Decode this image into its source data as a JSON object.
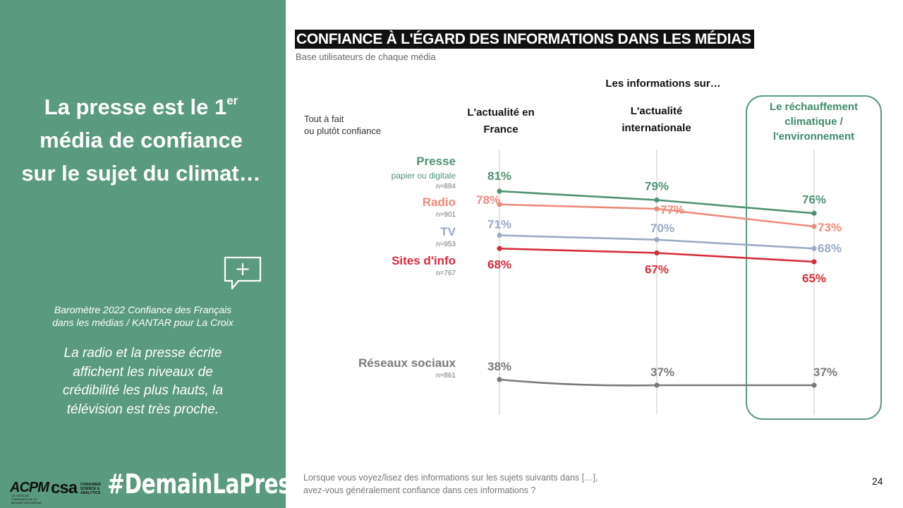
{
  "left_panel": {
    "headline_line1": "La presse est le 1",
    "headline_sup": "er",
    "headline_line2": "média de confiance",
    "headline_line3": "sur le sujet du climat…",
    "icon": "chat-plus-icon",
    "source_line1": "Baromètre 2022 Confiance des Français",
    "source_line2": "dans les médias / KANTAR pour La Croix",
    "note_line1": "La radio et la presse écrite",
    "note_line2": "affichent les niveaux de",
    "note_line3": "crédibilité les plus hauts, la",
    "note_line4": "télévision est très proche.",
    "hashtag": "#DemainLaPresse",
    "logo_acpm": "ACPM",
    "logo_acpm_sub": "DE TIERS DE CONFIANCE DE LA MESURE DES MÉDIAS",
    "logo_csa": "csa",
    "logo_csa_sub": "CONSUMER SCIENCE & ANALYTICS"
  },
  "chart_data": {
    "type": "line",
    "title": "CONFIANCE À L'ÉGARD DES INFORMATIONS DANS LES MÉDIAS",
    "subtitle": "Base utilisateurs de chaque média",
    "group_header": "Les informations sur…",
    "ylabel_line1": "Tout à fait",
    "ylabel_line2": "ou plutôt confiance",
    "categories": [
      {
        "line1": "L'actualité  en",
        "line2": "France",
        "line3": ""
      },
      {
        "line1": "L'actualité",
        "line2": "internationale",
        "line3": ""
      },
      {
        "line1": "Le réchauffement",
        "line2": "climatique  /",
        "line3": "l'environnement"
      }
    ],
    "highlighted_category": 2,
    "unit": "%",
    "ylim": [
      30,
      85
    ],
    "series": [
      {
        "name": "Presse",
        "sub": "papier ou digitale",
        "n": "n=884",
        "values": [
          81,
          79,
          76
        ],
        "color": "#4f9272"
      },
      {
        "name": "Radio",
        "sub": "",
        "n": "n=901",
        "values": [
          78,
          77,
          73
        ],
        "color": "#ee8a7d"
      },
      {
        "name": "TV",
        "sub": "",
        "n": "n=953",
        "values": [
          71,
          70,
          68
        ],
        "color": "#9aabc3"
      },
      {
        "name": "Sites d'info",
        "sub": "",
        "n": "n=767",
        "values": [
          68,
          67,
          65
        ],
        "color": "#d42d3a"
      },
      {
        "name": "Réseaux sociaux",
        "sub": "",
        "n": "n=861",
        "values": [
          38,
          37,
          37
        ],
        "color": "#7a7a7a"
      }
    ]
  },
  "footer": {
    "question_line1": "Lorsque vous voyez/lisez des informations sur les sujets suivants dans […],",
    "question_line2": "avez-vous généralement confiance dans ces informations ?",
    "page_number": "24"
  }
}
